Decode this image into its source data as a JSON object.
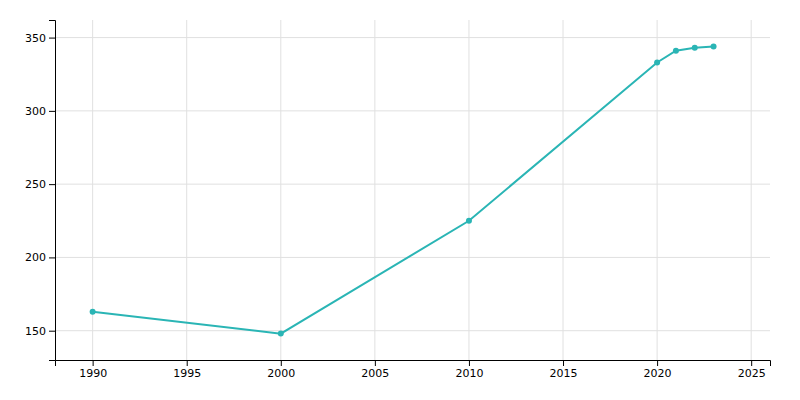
{
  "chart_data": {
    "type": "line",
    "x": [
      1990,
      2000,
      2010,
      2020,
      2021,
      2022,
      2023
    ],
    "values": [
      163,
      148,
      225,
      333,
      341,
      343,
      344
    ],
    "color": "#2ab5b5",
    "marker": "circle",
    "xlim": [
      1988,
      2026
    ],
    "ylim": [
      130,
      362
    ],
    "xticks": [
      1990,
      1995,
      2000,
      2005,
      2010,
      2015,
      2020,
      2025
    ],
    "yticks": [
      150,
      200,
      250,
      300,
      350
    ],
    "grid": true
  }
}
